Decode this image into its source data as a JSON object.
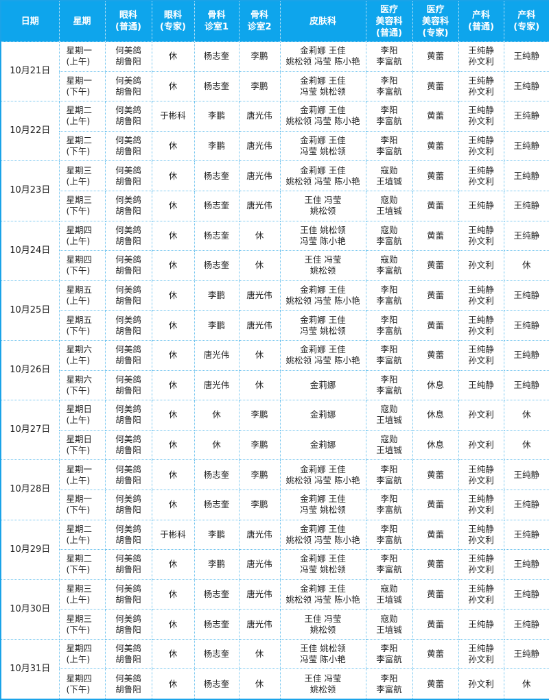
{
  "header": [
    "日期",
    "星期",
    "眼科\n(普通)",
    "眼科\n(专家)",
    "骨科\n诊室1",
    "骨科\n诊室2",
    "皮肤科",
    "医疗\n美容科\n(普通)",
    "医疗\n美容科\n(专家)",
    "产科\n(普通)",
    "产科\n(专家)"
  ],
  "days": [
    {
      "date": "10月21日",
      "rows": [
        [
          "星期一\n(上午)",
          "何美鸽\n胡鲁阳",
          "休",
          "杨志奎",
          "李鹏",
          "金莉娜 王佳\n姚松领 冯莹 陈小艳",
          "李阳\n李富航",
          "黄蕾",
          "王纯静\n孙文利",
          "王纯静"
        ],
        [
          "星期一\n(下午)",
          "何美鸽\n胡鲁阳",
          "休",
          "杨志奎",
          "李鹏",
          "金莉娜 王佳\n冯莹 姚松领",
          "李阳\n李富航",
          "黄蕾",
          "王纯静\n孙文利",
          "王纯静"
        ]
      ]
    },
    {
      "date": "10月22日",
      "rows": [
        [
          "星期二\n(上午)",
          "何美鸽\n胡鲁阳",
          "于彬科",
          "李鹏",
          "唐光伟",
          "金莉娜 王佳\n姚松领 冯莹 陈小艳",
          "李阳\n李富航",
          "黄蕾",
          "王纯静\n孙文利",
          "王纯静"
        ],
        [
          "星期二\n(下午)",
          "何美鸽\n胡鲁阳",
          "休",
          "李鹏",
          "唐光伟",
          "金莉娜 王佳\n冯莹 姚松领",
          "李阳\n李富航",
          "黄蕾",
          "王纯静\n孙文利",
          "王纯静"
        ]
      ]
    },
    {
      "date": "10月23日",
      "rows": [
        [
          "星期三\n(上午)",
          "何美鸽\n胡鲁阳",
          "休",
          "杨志奎",
          "唐光伟",
          "金莉娜 王佳\n姚松领 冯莹 陈小艳",
          "寇勋\n王埴铖",
          "黄蕾",
          "王纯静\n孙文利",
          "王纯静"
        ],
        [
          "星期三\n(下午)",
          "何美鸽\n胡鲁阳",
          "休",
          "杨志奎",
          "唐光伟",
          "王佳 冯莹\n姚松领",
          "寇勋\n王埴铖",
          "黄蕾",
          "王纯静",
          "王纯静"
        ]
      ]
    },
    {
      "date": "10月24日",
      "rows": [
        [
          "星期四\n(上午)",
          "何美鸽\n胡鲁阳",
          "休",
          "杨志奎",
          "休",
          "王佳 姚松领\n冯莹 陈小艳",
          "寇勋\n李富航",
          "黄蕾",
          "王纯静\n孙文利",
          "王纯静"
        ],
        [
          "星期四\n(下午)",
          "何美鸽\n胡鲁阳",
          "休",
          "杨志奎",
          "休",
          "王佳 冯莹\n姚松领",
          "寇勋\n李富航",
          "黄蕾",
          "孙文利",
          "休"
        ]
      ]
    },
    {
      "date": "10月25日",
      "rows": [
        [
          "星期五\n(上午)",
          "何美鸽\n胡鲁阳",
          "休",
          "李鹏",
          "唐光伟",
          "金莉娜 王佳\n姚松领 冯莹 陈小艳",
          "李阳\n李富航",
          "黄蕾",
          "王纯静\n孙文利",
          "王纯静"
        ],
        [
          "星期五\n(下午)",
          "何美鸽\n胡鲁阳",
          "休",
          "李鹏",
          "唐光伟",
          "金莉娜 王佳\n冯莹 姚松领",
          "李阳\n李富航",
          "黄蕾",
          "王纯静\n孙文利",
          "王纯静"
        ]
      ]
    },
    {
      "date": "10月26日",
      "rows": [
        [
          "星期六\n(上午)",
          "何美鸽\n胡鲁阳",
          "休",
          "唐光伟",
          "休",
          "金莉娜 王佳\n姚松领 冯莹 陈小艳",
          "李阳\n李富航",
          "黄蕾",
          "王纯静\n孙文利",
          "王纯静"
        ],
        [
          "星期六\n(下午)",
          "何美鸽\n胡鲁阳",
          "休",
          "唐光伟",
          "休",
          "金莉娜",
          "李阳\n李富航",
          "休息",
          "王纯静",
          "王纯静"
        ]
      ]
    },
    {
      "date": "10月27日",
      "rows": [
        [
          "星期日\n(上午)",
          "何美鸽\n胡鲁阳",
          "休",
          "休",
          "李鹏",
          "金莉娜",
          "寇勋\n王埴铖",
          "休息",
          "孙文利",
          "休"
        ],
        [
          "星期日\n(下午)",
          "何美鸽\n胡鲁阳",
          "休",
          "休",
          "李鹏",
          "金莉娜",
          "寇勋\n王埴铖",
          "休息",
          "孙文利",
          "休"
        ]
      ]
    },
    {
      "date": "10月28日",
      "rows": [
        [
          "星期一\n(上午)",
          "何美鸽\n胡鲁阳",
          "休",
          "杨志奎",
          "李鹏",
          "金莉娜 王佳\n姚松领 冯莹 陈小艳",
          "李阳\n李富航",
          "黄蕾",
          "王纯静\n孙文利",
          "王纯静"
        ],
        [
          "星期一\n(下午)",
          "何美鸽\n胡鲁阳",
          "休",
          "杨志奎",
          "李鹏",
          "金莉娜 王佳\n冯莹 姚松领",
          "李阳\n李富航",
          "黄蕾",
          "王纯静\n孙文利",
          "王纯静"
        ]
      ]
    },
    {
      "date": "10月29日",
      "rows": [
        [
          "星期二\n(上午)",
          "何美鸽\n胡鲁阳",
          "于彬科",
          "李鹏",
          "唐光伟",
          "金莉娜 王佳\n姚松领 冯莹 陈小艳",
          "李阳\n李富航",
          "黄蕾",
          "王纯静\n孙文利",
          "王纯静"
        ],
        [
          "星期二\n(下午)",
          "何美鸽\n胡鲁阳",
          "休",
          "李鹏",
          "唐光伟",
          "金莉娜 王佳\n冯莹 姚松领",
          "李阳\n李富航",
          "黄蕾",
          "王纯静\n孙文利",
          "王纯静"
        ]
      ]
    },
    {
      "date": "10月30日",
      "rows": [
        [
          "星期三\n(上午)",
          "何美鸽\n胡鲁阳",
          "休",
          "杨志奎",
          "唐光伟",
          "金莉娜 王佳\n姚松领 冯莹 陈小艳",
          "寇勋\n王埴铖",
          "黄蕾",
          "王纯静\n孙文利",
          "王纯静"
        ],
        [
          "星期三\n(下午)",
          "何美鸽\n胡鲁阳",
          "休",
          "杨志奎",
          "唐光伟",
          "王佳 冯莹\n姚松领",
          "寇勋\n王埴铖",
          "黄蕾",
          "王纯静",
          "王纯静"
        ]
      ]
    },
    {
      "date": "10月31日",
      "rows": [
        [
          "星期四\n(上午)",
          "何美鸽\n胡鲁阳",
          "休",
          "杨志奎",
          "休",
          "王佳 姚松领\n冯莹 陈小艳",
          "李阳\n李富航",
          "黄蕾",
          "王纯静\n孙文利",
          "王纯静"
        ],
        [
          "星期四\n(下午)",
          "何美鸽\n胡鲁阳",
          "休",
          "杨志奎",
          "休",
          "王佳 冯莹\n姚松领",
          "李阳\n李富航",
          "黄蕾",
          "孙文利",
          "休"
        ]
      ]
    }
  ],
  "colors": {
    "header_bg": "#0ea5ec",
    "border": "#6cc2ee"
  }
}
